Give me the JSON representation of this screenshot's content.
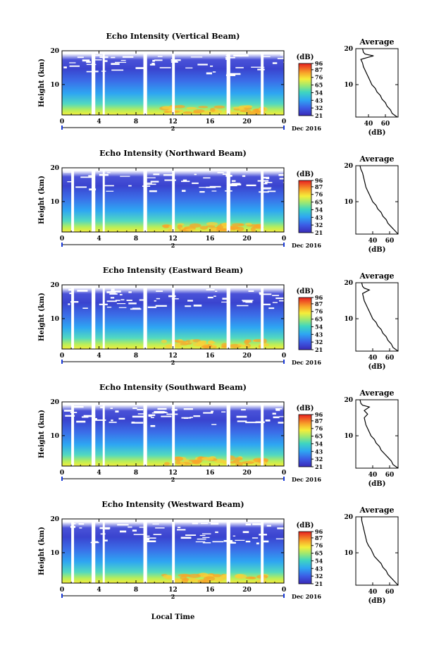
{
  "figure": {
    "xlabel": "Local Time",
    "date_label": "Dec 2016",
    "day_marker": "2",
    "colorbar_unit": "(dB)",
    "colorbar_ticks": [
      "96",
      "87",
      "76",
      "65",
      "54",
      "43",
      "32",
      "21"
    ],
    "average_title": "Average",
    "average_xlabel": "(dB)"
  },
  "chart_data": [
    {
      "type": "heatmap",
      "title": "Echo Intensity (Vertical Beam)",
      "ylabel": "Height (km)",
      "x_ticks": [
        "0",
        "4",
        "8",
        "12",
        "16",
        "20",
        "0"
      ],
      "y_ticks": [
        "10",
        "20"
      ],
      "xlim": [
        0,
        24
      ],
      "ylim": [
        1,
        20
      ],
      "colorbar": {
        "label": "(dB)",
        "range": [
          21,
          96
        ],
        "ticks": [
          96,
          87,
          76,
          65,
          54,
          43,
          32,
          21
        ]
      },
      "data_gaps_hours": [
        [
          3.2,
          3.6
        ],
        [
          4.4,
          4.6
        ],
        [
          8.8,
          9.2
        ],
        [
          11.9,
          12.2
        ],
        [
          17.8,
          18.2
        ],
        [
          21.5,
          21.8
        ]
      ],
      "profile": {
        "title": "Average",
        "xlabel": "(dB)",
        "x_ticks": [
          "40",
          "60"
        ],
        "y_ticks": [
          "10",
          "20"
        ],
        "xlim": [
          25,
          75
        ],
        "height_km": [
          1,
          2,
          3,
          4,
          5,
          6,
          7,
          8,
          9,
          10,
          11,
          12,
          13,
          14,
          15,
          16,
          17,
          17.5,
          18,
          18.5,
          19,
          20
        ],
        "values_db": [
          74,
          68,
          66,
          62,
          60,
          56,
          54,
          50,
          48,
          44,
          42,
          40,
          38,
          36,
          34,
          33,
          31,
          38,
          46,
          36,
          34,
          33
        ]
      }
    },
    {
      "type": "heatmap",
      "title": "Echo Intensity (Northward Beam)",
      "ylabel": "Height (km)",
      "x_ticks": [
        "0",
        "4",
        "8",
        "12",
        "16",
        "20",
        "0"
      ],
      "y_ticks": [
        "10",
        "20"
      ],
      "xlim": [
        0,
        24
      ],
      "ylim": [
        1,
        20
      ],
      "colorbar": {
        "label": "(dB)",
        "range": [
          21,
          96
        ],
        "ticks": [
          96,
          87,
          76,
          65,
          54,
          43,
          32,
          21
        ]
      },
      "data_gaps_hours": [
        [
          1,
          1.3
        ],
        [
          3.2,
          3.6
        ],
        [
          4.4,
          4.6
        ],
        [
          8.8,
          9.2
        ],
        [
          11.9,
          12.2
        ],
        [
          17.8,
          18.2
        ],
        [
          21.5,
          21.8
        ]
      ],
      "profile": {
        "title": "Average",
        "xlabel": "(dB)",
        "x_ticks": [
          "40",
          "60"
        ],
        "y_ticks": [
          "10",
          "20"
        ],
        "xlim": [
          20,
          70
        ],
        "height_km": [
          1,
          2,
          3,
          4,
          5,
          6,
          7,
          8,
          9,
          10,
          11,
          12,
          13,
          14,
          15,
          16,
          17,
          18,
          19,
          20
        ],
        "values_db": [
          70,
          66,
          62,
          58,
          56,
          52,
          50,
          46,
          44,
          40,
          38,
          36,
          34,
          32,
          31,
          30,
          29,
          28,
          26,
          25
        ]
      }
    },
    {
      "type": "heatmap",
      "title": "Echo Intensity (Eastward Beam)",
      "ylabel": "Height (km)",
      "x_ticks": [
        "0",
        "4",
        "8",
        "12",
        "16",
        "20",
        "0"
      ],
      "y_ticks": [
        "10",
        "20"
      ],
      "xlim": [
        0,
        24
      ],
      "ylim": [
        1,
        20
      ],
      "colorbar": {
        "label": "(dB)",
        "range": [
          21,
          96
        ],
        "ticks": [
          96,
          87,
          76,
          65,
          54,
          43,
          32,
          21
        ]
      },
      "data_gaps_hours": [
        [
          1,
          1.3
        ],
        [
          3.2,
          3.6
        ],
        [
          4.4,
          4.6
        ],
        [
          8.8,
          9.2
        ],
        [
          11.9,
          12.2
        ],
        [
          17.8,
          18.2
        ],
        [
          21.5,
          21.8
        ]
      ],
      "profile": {
        "title": "Average",
        "xlabel": "(dB)",
        "x_ticks": [
          "40",
          "60"
        ],
        "y_ticks": [
          "10",
          "20"
        ],
        "xlim": [
          20,
          70
        ],
        "height_km": [
          1,
          2,
          3,
          4,
          5,
          6,
          7,
          8,
          9,
          10,
          11,
          12,
          13,
          14,
          15,
          16,
          17,
          17.5,
          18,
          18.5,
          19,
          20
        ],
        "values_db": [
          70,
          64,
          62,
          58,
          56,
          52,
          50,
          46,
          44,
          40,
          38,
          36,
          34,
          32,
          30,
          29,
          28,
          32,
          36,
          30,
          28,
          27
        ]
      }
    },
    {
      "type": "heatmap",
      "title": "Echo Intensity (Southward Beam)",
      "ylabel": "Height (km)",
      "x_ticks": [
        "0",
        "4",
        "8",
        "12",
        "16",
        "20",
        "0"
      ],
      "y_ticks": [
        "10",
        "20"
      ],
      "xlim": [
        0,
        24
      ],
      "ylim": [
        1,
        20
      ],
      "colorbar": {
        "label": "(dB)",
        "range": [
          21,
          96
        ],
        "ticks": [
          96,
          87,
          76,
          65,
          54,
          43,
          32,
          21
        ]
      },
      "data_gaps_hours": [
        [
          1,
          1.3
        ],
        [
          3.2,
          3.6
        ],
        [
          4.4,
          4.6
        ],
        [
          8.8,
          9.2
        ],
        [
          11.9,
          12.2
        ],
        [
          17.8,
          18.2
        ],
        [
          21.5,
          21.8
        ]
      ],
      "profile": {
        "title": "Average",
        "xlabel": "(dB)",
        "x_ticks": [
          "40",
          "60"
        ],
        "y_ticks": [
          "10",
          "20"
        ],
        "xlim": [
          20,
          70
        ],
        "height_km": [
          1,
          2,
          3,
          4,
          5,
          6,
          7,
          8,
          9,
          10,
          11,
          12,
          13,
          14,
          15,
          16,
          17,
          18,
          18.5,
          19,
          20
        ],
        "values_db": [
          70,
          64,
          62,
          58,
          54,
          50,
          48,
          44,
          42,
          38,
          36,
          34,
          32,
          31,
          30,
          34,
          30,
          36,
          28,
          26,
          25
        ]
      }
    },
    {
      "type": "heatmap",
      "title": "Echo Intensity (Westward Beam)",
      "ylabel": "Height (km)",
      "x_ticks": [
        "0",
        "4",
        "8",
        "12",
        "16",
        "20",
        "0"
      ],
      "y_ticks": [
        "10",
        "20"
      ],
      "xlim": [
        0,
        24
      ],
      "ylim": [
        1,
        20
      ],
      "colorbar": {
        "label": "(dB)",
        "range": [
          21,
          96
        ],
        "ticks": [
          96,
          87,
          76,
          65,
          54,
          43,
          32,
          21
        ]
      },
      "data_gaps_hours": [
        [
          1,
          1.3
        ],
        [
          3.2,
          3.6
        ],
        [
          4.4,
          4.6
        ],
        [
          8.8,
          9.2
        ],
        [
          11.9,
          12.2
        ],
        [
          17.8,
          18.2
        ],
        [
          21.5,
          21.8
        ]
      ],
      "profile": {
        "title": "Average",
        "xlabel": "(dB)",
        "x_ticks": [
          "40",
          "60"
        ],
        "y_ticks": [
          "10",
          "20"
        ],
        "xlim": [
          20,
          70
        ],
        "height_km": [
          1,
          2,
          3,
          4,
          5,
          6,
          7,
          8,
          9,
          10,
          11,
          12,
          13,
          14,
          15,
          16,
          17,
          18,
          19,
          20
        ],
        "values_db": [
          70,
          66,
          62,
          58,
          56,
          52,
          50,
          46,
          42,
          40,
          38,
          35,
          33,
          32,
          31,
          30,
          29,
          28,
          27,
          27
        ]
      }
    }
  ]
}
